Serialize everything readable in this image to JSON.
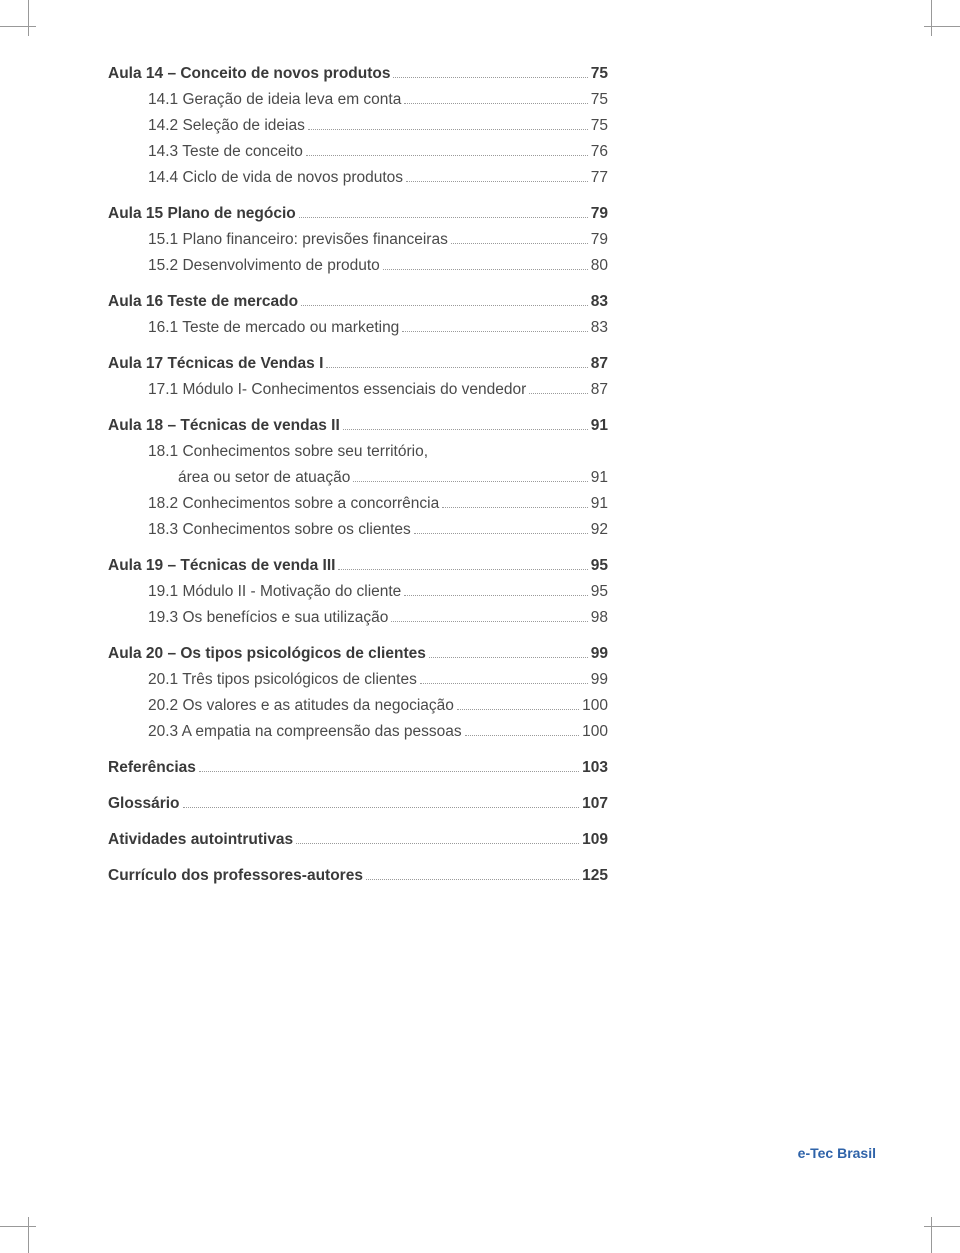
{
  "toc": [
    {
      "type": "group",
      "items": [
        {
          "label": "Aula 14 – Conceito de novos produtos",
          "page": "75",
          "bold": true
        },
        {
          "label": "14.1 Geração de ideia leva em conta",
          "page": "75",
          "indent": 1
        },
        {
          "label": "14.2 Seleção de ideias",
          "page": "75",
          "indent": 1
        },
        {
          "label": "14.3 Teste de conceito",
          "page": "76",
          "indent": 1
        },
        {
          "label": "14.4 Ciclo de vida de novos produtos",
          "page": "77",
          "indent": 1
        }
      ]
    },
    {
      "type": "group",
      "items": [
        {
          "label": "Aula 15 Plano de negócio",
          "page": "79",
          "bold": true
        },
        {
          "label": "15.1 Plano financeiro: previsões financeiras",
          "page": "79",
          "indent": 1
        },
        {
          "label": "15.2 Desenvolvimento de produto",
          "page": "80",
          "indent": 1
        }
      ]
    },
    {
      "type": "group",
      "items": [
        {
          "label": "Aula 16 Teste de mercado",
          "page": "83",
          "bold": true
        },
        {
          "label": "16.1 Teste de mercado ou marketing",
          "page": "83",
          "indent": 1
        }
      ]
    },
    {
      "type": "group",
      "items": [
        {
          "label": "Aula 17 Técnicas de Vendas I",
          "page": "87",
          "bold": true
        },
        {
          "label": "17.1 Módulo I- Conhecimentos essenciais do vendedor",
          "page": "87",
          "indent": 1
        }
      ]
    },
    {
      "type": "group",
      "items": [
        {
          "label": "Aula 18 – Técnicas de vendas II",
          "page": "91",
          "bold": true
        },
        {
          "label": "18.1 Conhecimentos sobre seu território,",
          "page": "",
          "indent": 1,
          "noleader": true
        },
        {
          "label": "área ou setor de atuação",
          "page": "91",
          "indent": 2
        },
        {
          "label": "18.2 Conhecimentos sobre a concorrência",
          "page": "91",
          "indent": 1
        },
        {
          "label": "18.3 Conhecimentos sobre os clientes",
          "page": "92",
          "indent": 1
        }
      ]
    },
    {
      "type": "group",
      "items": [
        {
          "label": "Aula 19 – Técnicas de venda III",
          "page": "95",
          "bold": true
        },
        {
          "label": "19.1 Módulo II - Motivação do cliente",
          "page": "95",
          "indent": 1
        },
        {
          "label": "19.3 Os benefícios e sua utilização",
          "page": "98",
          "indent": 1
        }
      ]
    },
    {
      "type": "group",
      "items": [
        {
          "label": "Aula 20 – Os tipos psicológicos de clientes",
          "page": "99",
          "bold": true
        },
        {
          "label": "20.1 Três tipos psicológicos de clientes",
          "page": "99",
          "indent": 1
        },
        {
          "label": "20.2 Os valores e as atitudes da negociação",
          "page": "100",
          "indent": 1
        },
        {
          "label": "20.3 A empatia na compreensão das pessoas",
          "page": "100",
          "indent": 1
        }
      ]
    },
    {
      "type": "group",
      "items": [
        {
          "label": "Referências",
          "page": "103",
          "bold": true
        }
      ]
    },
    {
      "type": "group",
      "items": [
        {
          "label": "Glossário",
          "page": "107",
          "bold": true
        }
      ]
    },
    {
      "type": "group",
      "items": [
        {
          "label": "Atividades autointrutivas",
          "page": "109",
          "bold": true
        }
      ]
    },
    {
      "type": "group",
      "items": [
        {
          "label": "Currículo dos professores-autores",
          "page": "125",
          "bold": true
        }
      ]
    }
  ],
  "footer": "e-Tec Brasil",
  "colors": {
    "text": "#4a4a4a",
    "bold_text": "#3a3a3a",
    "leader": "#9a9a9a",
    "footer": "#2f63a9",
    "background": "#ffffff"
  }
}
